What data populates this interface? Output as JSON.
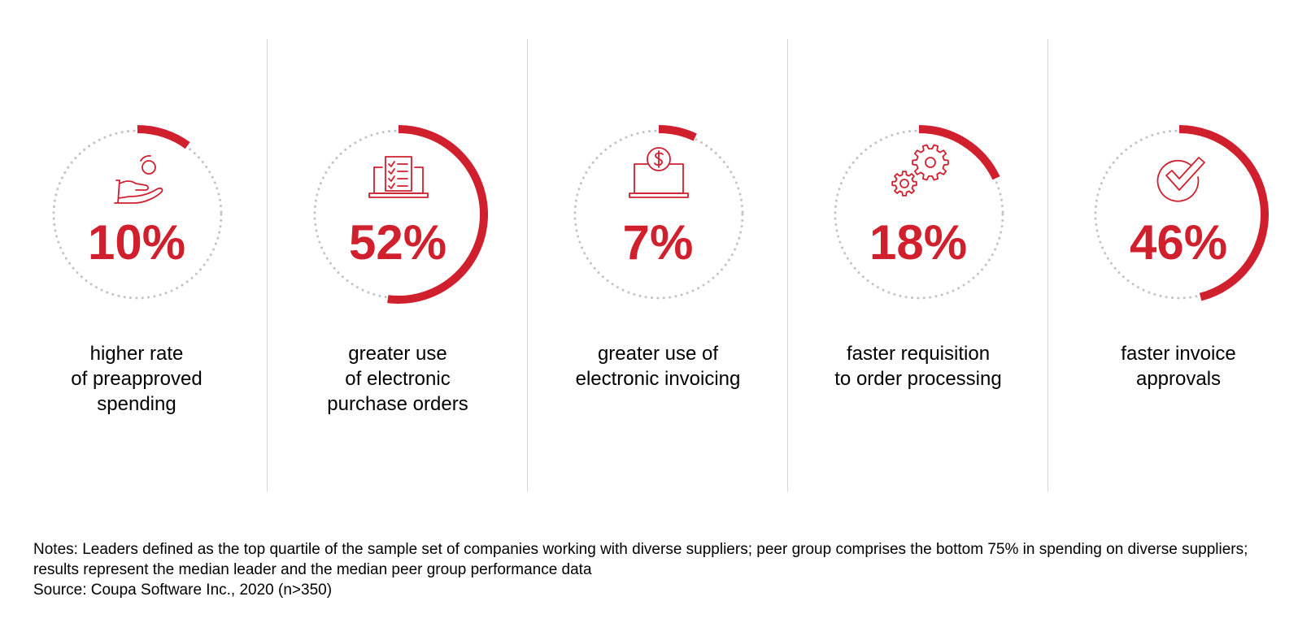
{
  "chart_data": {
    "type": "radial-progress",
    "unit": "%",
    "items": [
      {
        "value": 10,
        "label": "10%",
        "description": "higher rate\nof preapproved\nspending",
        "icon": "hand-coin-icon"
      },
      {
        "value": 52,
        "label": "52%",
        "description": "greater use\nof electronic\npurchase orders",
        "icon": "laptop-checklist-icon"
      },
      {
        "value": 7,
        "label": "7%",
        "description": "greater use of\nelectronic invoicing",
        "icon": "laptop-dollar-icon"
      },
      {
        "value": 18,
        "label": "18%",
        "description": "faster requisition\nto order processing",
        "icon": "gears-icon"
      },
      {
        "value": 46,
        "label": "46%",
        "description": "faster invoice\napprovals",
        "icon": "check-circle-icon"
      }
    ]
  },
  "footer": {
    "notes": "Notes: Leaders defined as the top quartile of the sample set of companies working with diverse suppliers; peer group comprises the bottom 75% in spending on diverse suppliers; results represent the median leader and the median peer group performance data",
    "source": "Source: Coupa Software Inc., 2020 (n>350)"
  },
  "colors": {
    "accent": "#d0202e",
    "track": "#c4c4c4",
    "divider": "#d6d6d6"
  }
}
